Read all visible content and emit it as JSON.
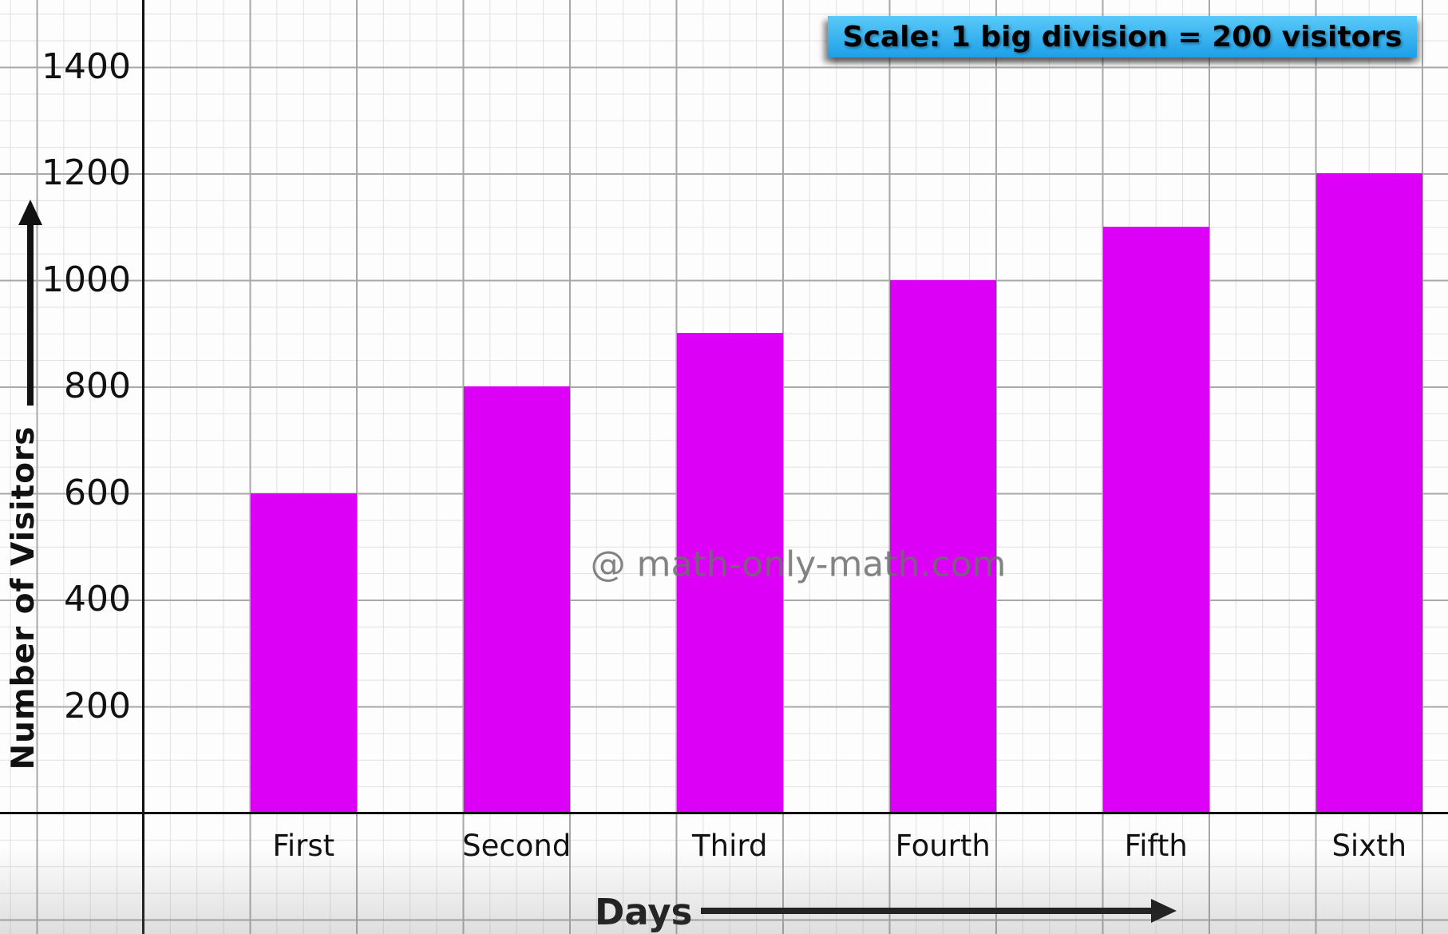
{
  "chart_data": {
    "type": "bar",
    "categories": [
      "First",
      "Second",
      "Third",
      "Fourth",
      "Fifth",
      "Sixth"
    ],
    "values": [
      600,
      800,
      900,
      1000,
      1100,
      1200
    ],
    "title": "",
    "xlabel": "Days",
    "ylabel": "Number of Visitors",
    "yticks": [
      200,
      400,
      600,
      800,
      1000,
      1200,
      1400
    ],
    "ylim": [
      0,
      1520
    ],
    "y_big_division": 200,
    "scale_note": "Scale: 1 big division = 200 visitors",
    "grid": "graph-paper, minor squares 1/4 of a big division",
    "legend": "none",
    "bar_color": "#DD00F7"
  },
  "watermark": {
    "text": "@ math-only-math.com",
    "color": "#6E6E6E"
  },
  "style": {
    "scale_box_gradient_top": "#59CAF8",
    "scale_box_gradient_bottom": "#1E9FE8",
    "grid_major_color": "#A8A8A8",
    "grid_minor_color": "#E0E0E0",
    "axis_color": "#111111"
  }
}
